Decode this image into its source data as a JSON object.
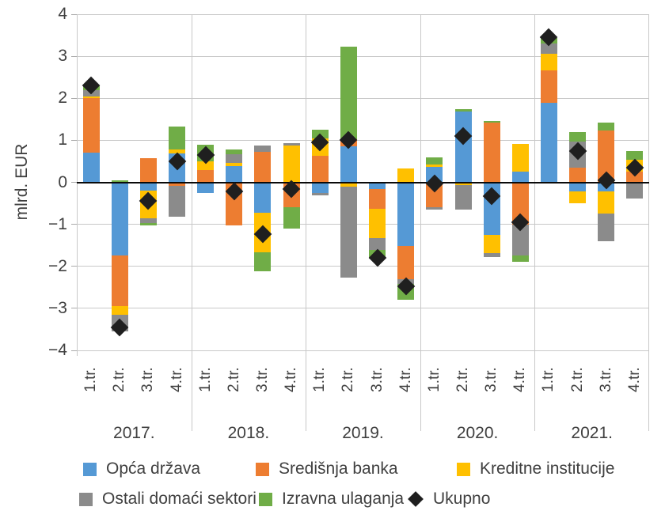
{
  "chart_data": {
    "type": "bar",
    "subtype": "stacked-bar-with-total-markers",
    "title": "",
    "ylabel": "mlrd. EUR",
    "ylim": [
      -4,
      4
    ],
    "y_ticks": [
      4,
      3,
      2,
      1,
      0,
      -1,
      -2,
      -3,
      -4
    ],
    "grid": "on",
    "years": [
      "2017.",
      "2018.",
      "2019.",
      "2020.",
      "2021."
    ],
    "quarter_labels": [
      "1.tr.",
      "2.tr.",
      "3.tr.",
      "4.tr."
    ],
    "categories": [
      "2017 1.tr.",
      "2017 2.tr.",
      "2017 3.tr.",
      "2017 4.tr.",
      "2018 1.tr.",
      "2018 2.tr.",
      "2018 3.tr.",
      "2018 4.tr.",
      "2019 1.tr.",
      "2019 2.tr.",
      "2019 3.tr.",
      "2019 4.tr.",
      "2020 1.tr.",
      "2020 2.tr.",
      "2020 3.tr.",
      "2020 4.tr.",
      "2021 1.tr.",
      "2021 2.tr.",
      "2021 3.tr.",
      "2021 4.tr."
    ],
    "series": [
      {
        "name": "Opća država",
        "color": "#5599D5",
        "values": [
          0.7,
          -1.75,
          -0.2,
          0.69,
          -0.25,
          0.38,
          -0.72,
          0,
          -0.25,
          0.85,
          -0.16,
          -1.51,
          0.36,
          1.69,
          -1.26,
          0.25,
          1.89,
          -0.21,
          -0.21,
          0
        ]
      },
      {
        "name": "Središnja banka",
        "color": "#ED7D31",
        "values": [
          1.3,
          -1.2,
          0.58,
          -0.09,
          0.3,
          -1.02,
          0.72,
          -0.6,
          0.63,
          0.18,
          -0.47,
          -0.79,
          -0.6,
          0,
          1.42,
          -1.01,
          0.78,
          0.35,
          1.23,
          0.25
        ]
      },
      {
        "name": "Kreditne institucije",
        "color": "#FFC000",
        "values": [
          0.05,
          -0.2,
          -0.65,
          0.1,
          0.2,
          0.09,
          -0.95,
          0.88,
          0.41,
          -0.11,
          -0.69,
          0.33,
          0.07,
          -0.06,
          -0.42,
          0.66,
          0.38,
          -0.28,
          -0.53,
          0.28
        ]
      },
      {
        "name": "Ostali domaći sektori",
        "color": "#8B8B8B",
        "values": [
          0.15,
          -0.4,
          -0.12,
          -0.73,
          0,
          0.19,
          0.16,
          0.06,
          -0.06,
          -2.15,
          -0.28,
          -0.12,
          -0.04,
          -0.58,
          -0.09,
          -0.73,
          0.25,
          0.62,
          -0.66,
          -0.39
        ]
      },
      {
        "name": "Izravna ulaganja",
        "color": "#70AD47",
        "values": [
          0.1,
          0.05,
          -0.06,
          0.53,
          0.4,
          0.13,
          -0.44,
          -0.5,
          0.21,
          2.2,
          -0.22,
          -0.38,
          0.16,
          0.06,
          0.03,
          -0.15,
          0.13,
          0.23,
          0.2,
          0.21
        ]
      }
    ],
    "marker_series": {
      "name": "Ukupno",
      "color": "#1f1f1f",
      "values": [
        2.3,
        -3.45,
        -0.45,
        0.5,
        0.65,
        -0.22,
        -1.23,
        -0.16,
        0.95,
        1.0,
        -1.8,
        -2.48,
        -0.03,
        1.11,
        -0.33,
        -0.95,
        3.45,
        0.75,
        0.05,
        0.35
      ]
    },
    "legend": {
      "position": "bottom",
      "rows": [
        [
          "Opća država",
          "Središnja banka",
          "Kreditne institucije"
        ],
        [
          "Ostali domaći sektori",
          "Izravna ulaganja",
          "Ukupno"
        ]
      ]
    }
  }
}
